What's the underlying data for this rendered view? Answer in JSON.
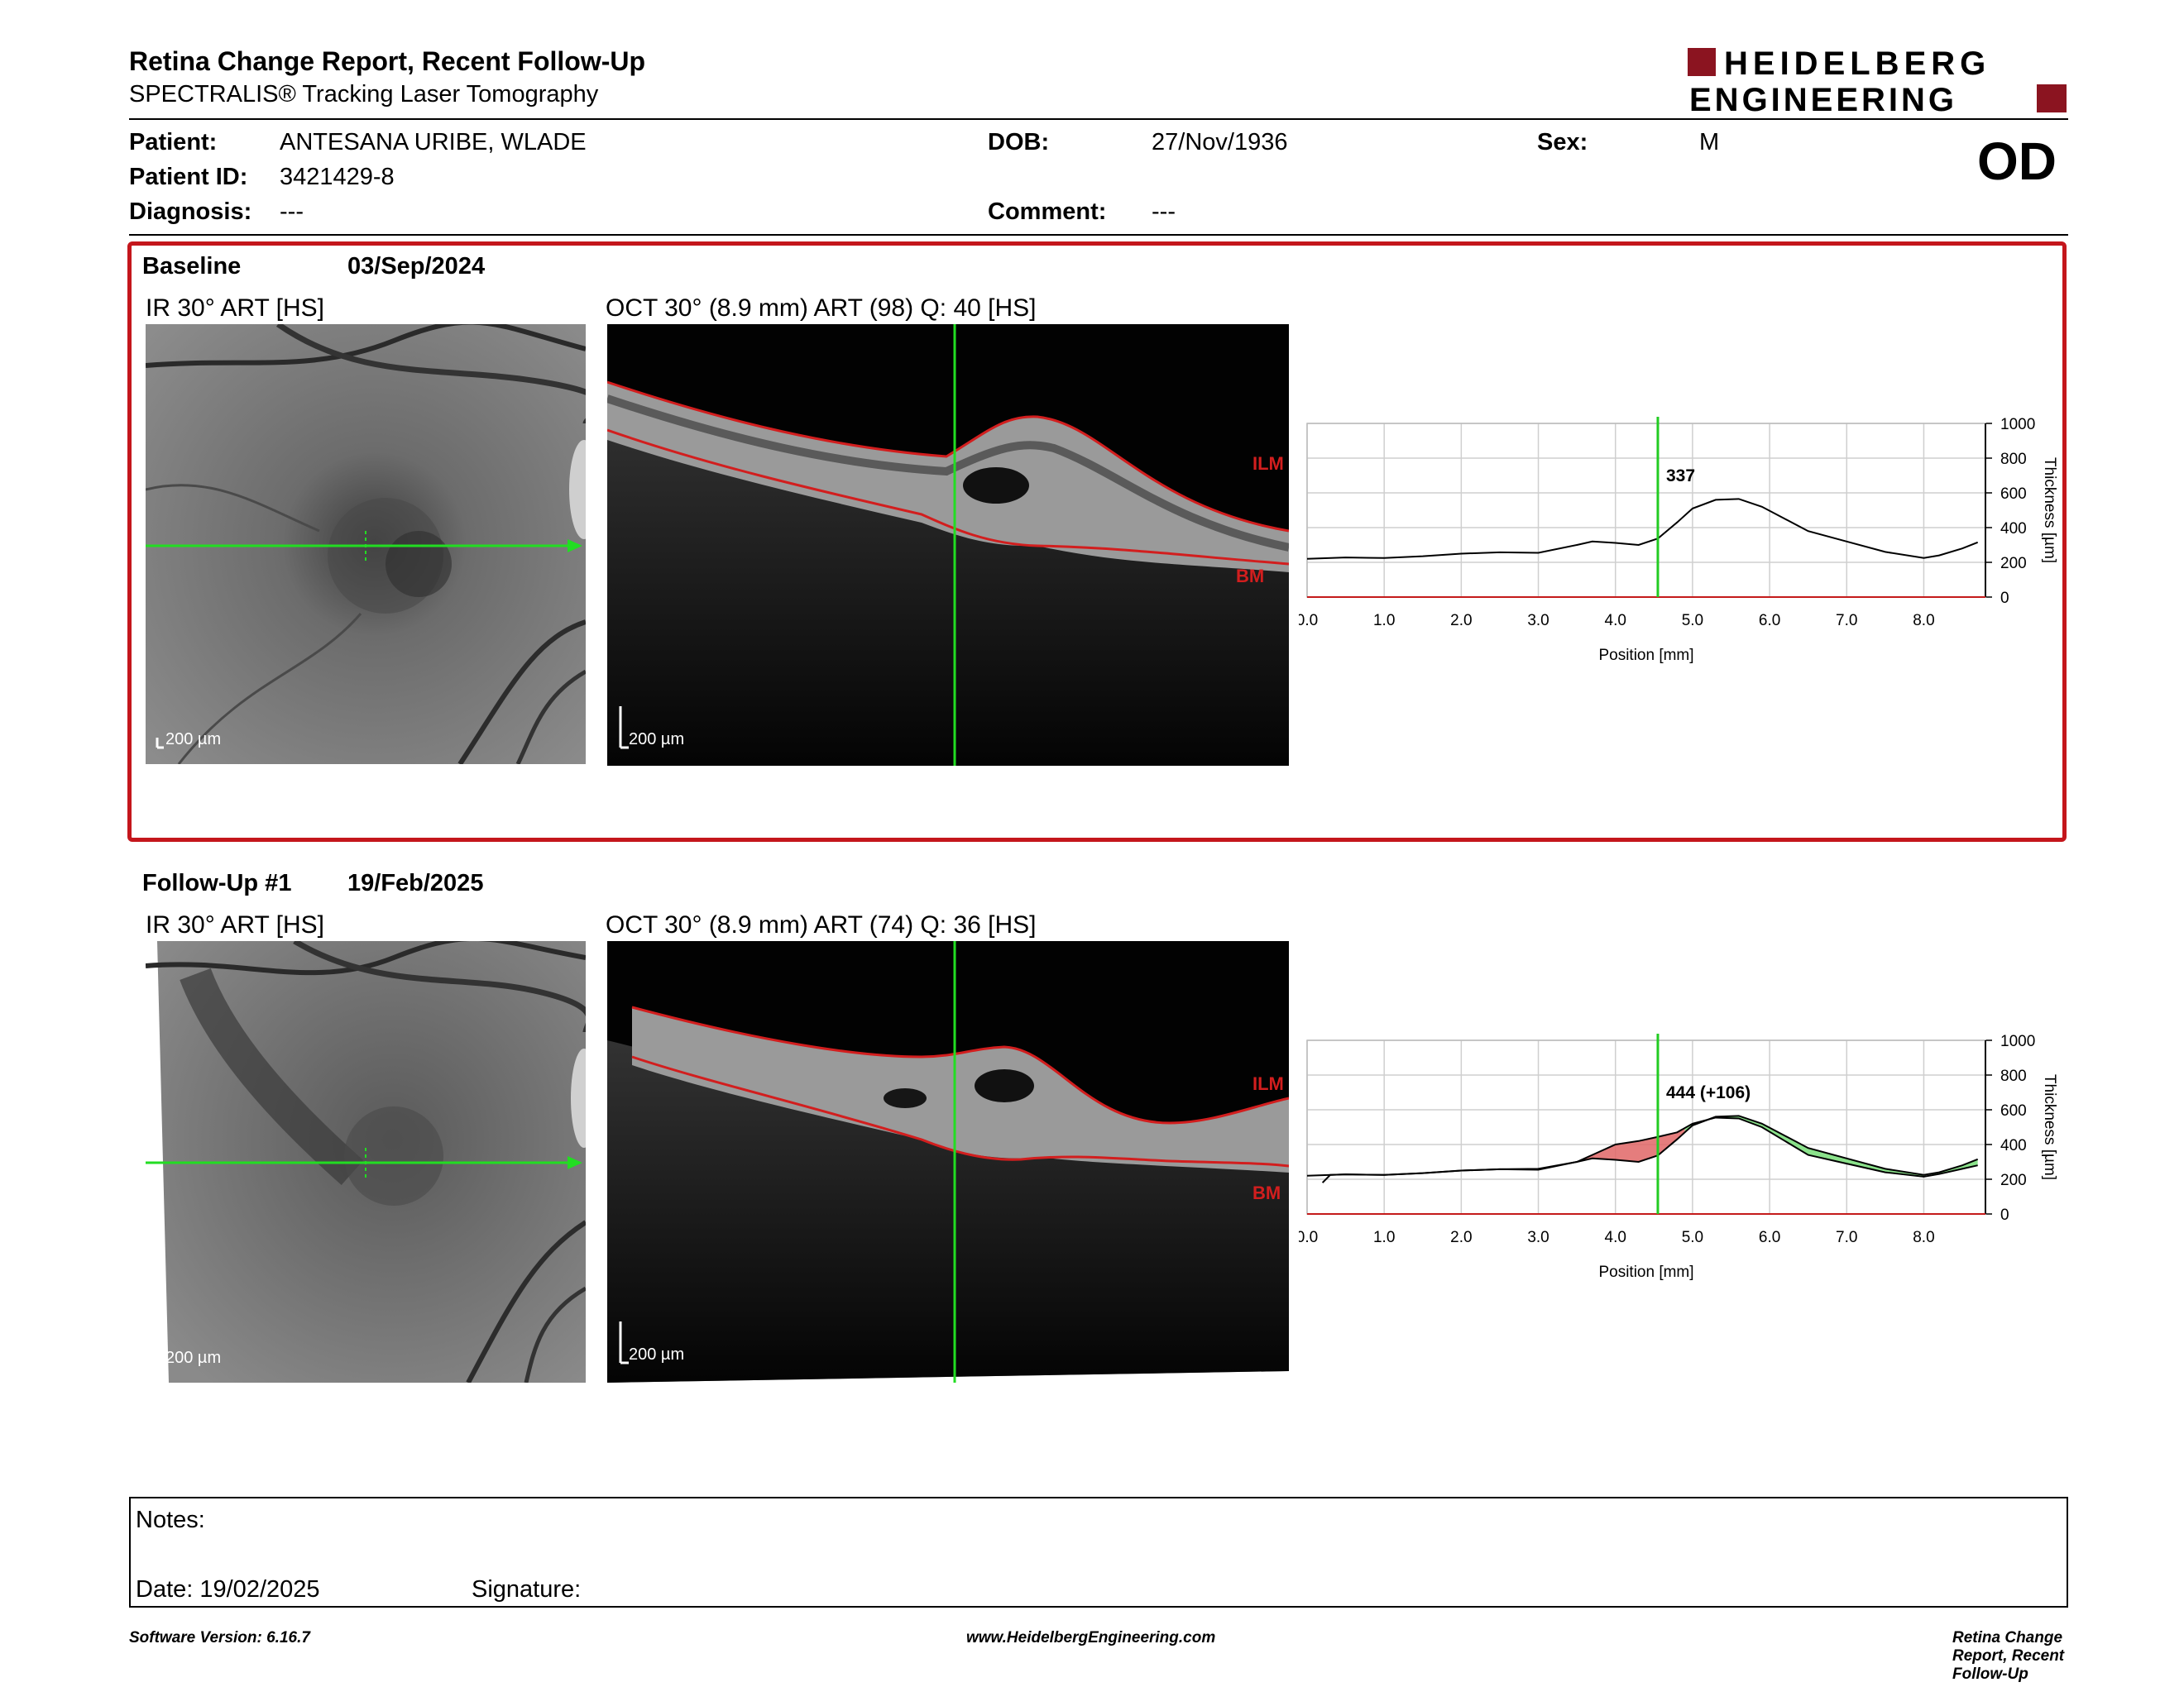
{
  "header": {
    "title": "Retina Change Report, Recent Follow-Up",
    "subtitle": "SPECTRALIS® Tracking Laser Tomography",
    "logo_line1": "HEIDELBERG",
    "logo_line2": "ENGINEERING",
    "eye": "OD"
  },
  "patient": {
    "patient_label": "Patient:",
    "patient_value": "ANTESANA URIBE, WLADE",
    "id_label": "Patient ID:",
    "id_value": "3421429-8",
    "diagnosis_label": "Diagnosis:",
    "diagnosis_value": "---",
    "dob_label": "DOB:",
    "dob_value": "27/Nov/1936",
    "comment_label": "Comment:",
    "comment_value": "---",
    "sex_label": "Sex:",
    "sex_value": "M"
  },
  "baseline": {
    "label": "Baseline",
    "date": "03/Sep/2024",
    "ir_caption": "IR 30° ART [HS]",
    "oct_caption": "OCT 30° (8.9 mm) ART (98) Q: 40 [HS]",
    "ir_scale": "200 µm",
    "oct_scale": "200 µm",
    "ilm": "ILM",
    "bm": "BM"
  },
  "followup": {
    "label": "Follow-Up #1",
    "date": "19/Feb/2025",
    "ir_caption": "IR 30° ART [HS]",
    "oct_caption": "OCT 30° (8.9 mm) ART (74) Q: 36 [HS]",
    "ir_scale": "200 µm",
    "oct_scale": "200 µm",
    "ilm": "ILM",
    "bm": "BM"
  },
  "chart_data": [
    {
      "type": "line",
      "xlabel": "Position [mm]",
      "ylabel": "Thickness [µm]",
      "xlim": [
        0,
        8.8
      ],
      "ylim": [
        0,
        1000
      ],
      "xticks": [
        "0.0",
        "1.0",
        "2.0",
        "3.0",
        "4.0",
        "5.0",
        "6.0",
        "7.0",
        "8.0"
      ],
      "yticks": [
        "0",
        "200",
        "400",
        "600",
        "800",
        "1000"
      ],
      "cursor_x": 4.55,
      "cursor_label": "337",
      "x": [
        0.0,
        0.5,
        1.0,
        1.5,
        2.0,
        2.5,
        3.0,
        3.5,
        3.7,
        4.0,
        4.3,
        4.55,
        4.8,
        5.0,
        5.3,
        5.6,
        5.9,
        6.2,
        6.5,
        7.0,
        7.5,
        8.0,
        8.2,
        8.5,
        8.7
      ],
      "y": [
        220,
        228,
        225,
        235,
        250,
        258,
        255,
        300,
        320,
        312,
        300,
        337,
        430,
        510,
        560,
        565,
        520,
        450,
        380,
        320,
        260,
        225,
        240,
        280,
        315
      ]
    },
    {
      "type": "line",
      "xlabel": "Position [mm]",
      "ylabel": "Thickness [µm]",
      "xlim": [
        0,
        8.8
      ],
      "ylim": [
        0,
        1000
      ],
      "xticks": [
        "0.0",
        "1.0",
        "2.0",
        "3.0",
        "4.0",
        "5.0",
        "6.0",
        "7.0",
        "8.0"
      ],
      "yticks": [
        "0",
        "200",
        "400",
        "600",
        "800",
        "1000"
      ],
      "cursor_x": 4.55,
      "cursor_label": "444 (+106)",
      "x": [
        0.2,
        0.3,
        0.5,
        1.0,
        1.5,
        2.0,
        2.5,
        3.0,
        3.5,
        3.7,
        4.0,
        4.3,
        4.55,
        4.8,
        5.0,
        5.3,
        5.6,
        5.9,
        6.2,
        6.5,
        7.0,
        7.5,
        8.0,
        8.2,
        8.5,
        8.7
      ],
      "y": [
        180,
        225,
        228,
        225,
        235,
        250,
        258,
        260,
        300,
        340,
        400,
        420,
        444,
        470,
        520,
        555,
        550,
        500,
        420,
        340,
        290,
        240,
        215,
        230,
        260,
        280
      ]
    }
  ],
  "notes": {
    "notes_label": "Notes:",
    "date_label": "Date: 19/02/2025",
    "signature_label": "Signature:"
  },
  "footer": {
    "left": "Software Version: 6.16.7",
    "center": "www.HeidelbergEngineering.com",
    "right": "Retina Change Report, Recent Follow-Up"
  }
}
